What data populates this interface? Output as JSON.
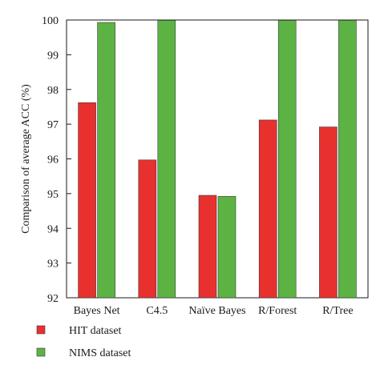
{
  "chart_data": {
    "type": "bar",
    "title": "",
    "xlabel": "",
    "ylabel": "Comparison of average ACC (%)",
    "ylim": [
      92,
      100
    ],
    "yticks": [
      92,
      93,
      94,
      95,
      96,
      97,
      98,
      99,
      100
    ],
    "grid": false,
    "legend_position": "bottom-left",
    "categories": [
      "Bayes Net",
      "C4.5",
      "Naïve Bayes",
      "R/Forest",
      "R/Tree"
    ],
    "series": [
      {
        "name": "HIT dataset",
        "color": "#e8312f",
        "values": [
          97.62,
          95.97,
          94.95,
          97.12,
          96.92
        ]
      },
      {
        "name": "NIMS dataset",
        "color": "#5cb344",
        "values": [
          99.93,
          99.99,
          94.92,
          99.99,
          99.99
        ]
      }
    ]
  }
}
